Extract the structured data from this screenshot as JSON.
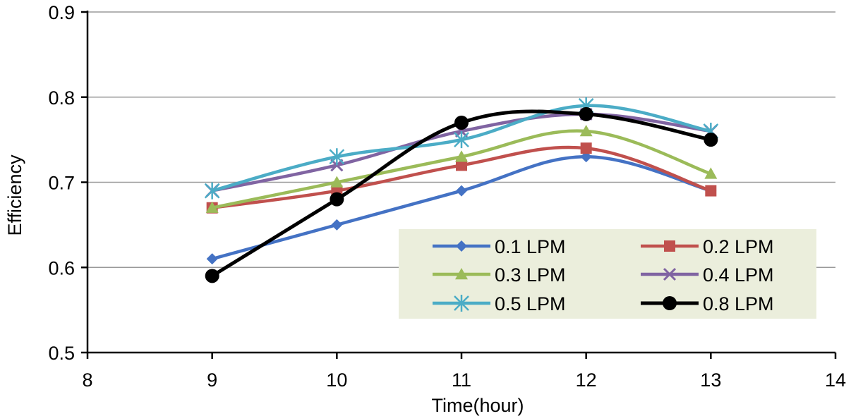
{
  "chart_data": {
    "type": "line",
    "title": "",
    "xlabel": "Time(hour)",
    "ylabel": "Efficiency",
    "xlim": [
      8,
      14
    ],
    "ylim": [
      0.5,
      0.9
    ],
    "xticks": [
      8,
      9,
      10,
      11,
      12,
      13,
      14
    ],
    "yticks": [
      0.5,
      0.6,
      0.7,
      0.8,
      0.9
    ],
    "xtick_labels": [
      "8",
      "9",
      "10",
      "11",
      "12",
      "13",
      "14"
    ],
    "ytick_labels": [
      "0.5",
      "0.6",
      "0.7",
      "0.8",
      "0.9"
    ],
    "grid": "horizontal",
    "legend_position": "lower-right",
    "x": [
      9,
      10,
      11,
      12,
      13
    ],
    "series": [
      {
        "name": "0.1 LPM",
        "color": "#4472C4",
        "marker": "diamond",
        "values": [
          0.61,
          0.65,
          0.69,
          0.73,
          0.69
        ]
      },
      {
        "name": "0.2 LPM",
        "color": "#C0504D",
        "marker": "square",
        "values": [
          0.67,
          0.69,
          0.72,
          0.74,
          0.69
        ]
      },
      {
        "name": "0.3 LPM",
        "color": "#9BBB59",
        "marker": "triangle",
        "values": [
          0.67,
          0.7,
          0.73,
          0.76,
          0.71
        ]
      },
      {
        "name": "0.4 LPM",
        "color": "#8064A2",
        "marker": "x",
        "values": [
          0.69,
          0.72,
          0.76,
          0.78,
          0.76
        ]
      },
      {
        "name": "0.5 LPM",
        "color": "#4BACC6",
        "marker": "asterisk",
        "values": [
          0.69,
          0.73,
          0.75,
          0.79,
          0.76
        ]
      },
      {
        "name": "0.8 LPM",
        "color": "#000000",
        "marker": "circle",
        "values": [
          0.59,
          0.68,
          0.77,
          0.78,
          0.75
        ]
      }
    ]
  }
}
